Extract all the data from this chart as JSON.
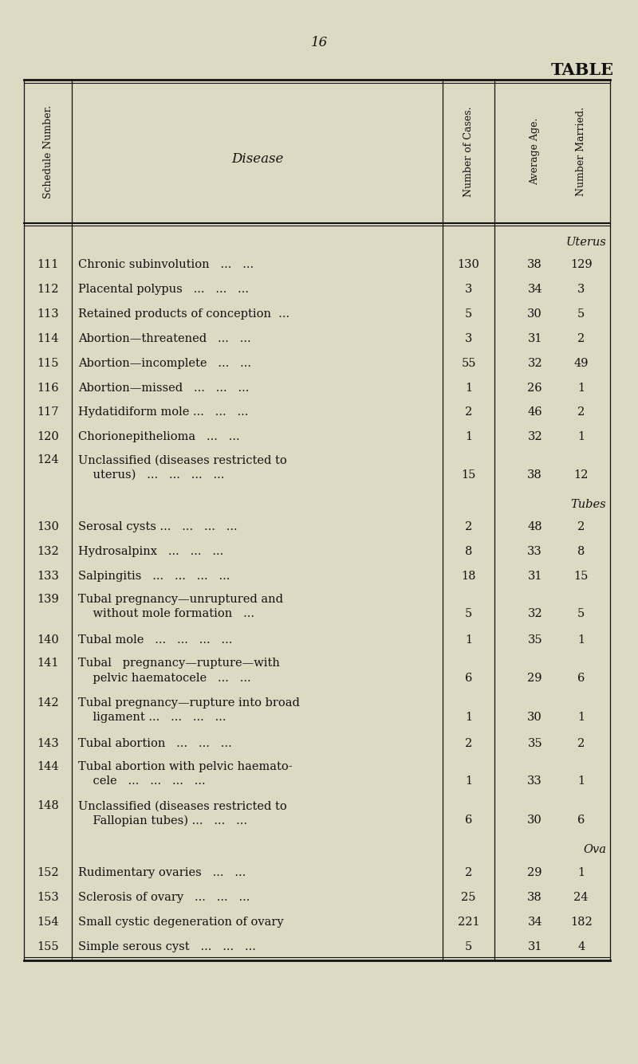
{
  "page_number": "16",
  "title": "TABLE",
  "bg_color": "#ddd9c3",
  "rows": [
    {
      "sched": "111",
      "line1": "Chronic subinvolution   ...   ...",
      "line2": null,
      "cases": "130",
      "age": "38",
      "married": "129",
      "section": "Uterus"
    },
    {
      "sched": "112",
      "line1": "Placental polypus   ...   ...   ...",
      "line2": null,
      "cases": "3",
      "age": "34",
      "married": "3",
      "section": null
    },
    {
      "sched": "113",
      "line1": "Retained products of conception  ...",
      "line2": null,
      "cases": "5",
      "age": "30",
      "married": "5",
      "section": null
    },
    {
      "sched": "114",
      "line1": "Abortion—threatened   ...   ...",
      "line2": null,
      "cases": "3",
      "age": "31",
      "married": "2",
      "section": null
    },
    {
      "sched": "115",
      "line1": "Abortion—incomplete   ...   ...",
      "line2": null,
      "cases": "55",
      "age": "32",
      "married": "49",
      "section": null
    },
    {
      "sched": "116",
      "line1": "Abortion—missed   ...   ...   ...",
      "line2": null,
      "cases": "1",
      "age": "26",
      "married": "1",
      "section": null
    },
    {
      "sched": "117",
      "line1": "Hydatidiform mole ...   ...   ...",
      "line2": null,
      "cases": "2",
      "age": "46",
      "married": "2",
      "section": null
    },
    {
      "sched": "120",
      "line1": "Chorionepithelioma   ...   ...",
      "line2": null,
      "cases": "1",
      "age": "32",
      "married": "1",
      "section": null
    },
    {
      "sched": "124",
      "line1": "Unclassified (diseases restricted to",
      "line2": "    uterus)   ...   ...   ...   ...",
      "cases": "15",
      "age": "38",
      "married": "12",
      "section": null
    },
    {
      "sched": "130",
      "line1": "Serosal cysts ...   ...   ...   ...",
      "line2": null,
      "cases": "2",
      "age": "48",
      "married": "2",
      "section": "Tubes"
    },
    {
      "sched": "132",
      "line1": "Hydrosalpinx   ...   ...   ...",
      "line2": null,
      "cases": "8",
      "age": "33",
      "married": "8",
      "section": null
    },
    {
      "sched": "133",
      "line1": "Salpingitis   ...   ...   ...   ...",
      "line2": null,
      "cases": "18",
      "age": "31",
      "married": "15",
      "section": null
    },
    {
      "sched": "139",
      "line1": "Tubal pregnancy—unruptured and",
      "line2": "    without mole formation   ...",
      "cases": "5",
      "age": "32",
      "married": "5",
      "section": null
    },
    {
      "sched": "140",
      "line1": "Tubal mole   ...   ...   ...   ...",
      "line2": null,
      "cases": "1",
      "age": "35",
      "married": "1",
      "section": null
    },
    {
      "sched": "141",
      "line1": "Tubal   pregnancy—rupture—with",
      "line2": "    pelvic haematocele   ...   ...",
      "cases": "6",
      "age": "29",
      "married": "6",
      "section": null
    },
    {
      "sched": "142",
      "line1": "Tubal pregnancy—rupture into broad",
      "line2": "    ligament ...   ...   ...   ...",
      "cases": "1",
      "age": "30",
      "married": "1",
      "section": null
    },
    {
      "sched": "143",
      "line1": "Tubal abortion   ...   ...   ...",
      "line2": null,
      "cases": "2",
      "age": "35",
      "married": "2",
      "section": null
    },
    {
      "sched": "144",
      "line1": "Tubal abortion with pelvic haemato-",
      "line2": "    cele   ...   ...   ...   ...",
      "cases": "1",
      "age": "33",
      "married": "1",
      "section": null
    },
    {
      "sched": "148",
      "line1": "Unclassified (diseases restricted to",
      "line2": "    Fallopian tubes) ...   ...   ...",
      "cases": "6",
      "age": "30",
      "married": "6",
      "section": null
    },
    {
      "sched": "152",
      "line1": "Rudimentary ovaries   ...   ...",
      "line2": null,
      "cases": "2",
      "age": "29",
      "married": "1",
      "section": "Ova"
    },
    {
      "sched": "153",
      "line1": "Sclerosis of ovary   ...   ...   ...",
      "line2": null,
      "cases": "25",
      "age": "38",
      "married": "24",
      "section": null
    },
    {
      "sched": "154",
      "line1": "Small cystic degeneration of ovary",
      "line2": null,
      "cases": "221",
      "age": "34",
      "married": "182",
      "section": null
    },
    {
      "sched": "155",
      "line1": "Simple serous cyst   ...   ...   ...",
      "line2": null,
      "cases": "5",
      "age": "31",
      "married": "4",
      "section": null
    }
  ],
  "text_color": "#111111",
  "line_color": "#111111"
}
